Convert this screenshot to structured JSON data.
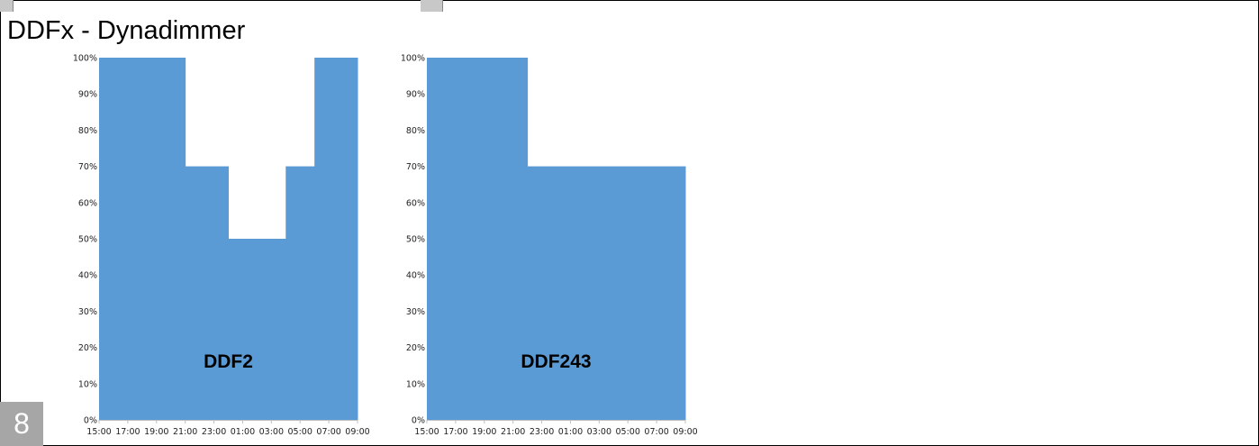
{
  "slide": {
    "title": "DDFx - Dynadimmer",
    "page_number": "8"
  },
  "colors": {
    "area_fill": "#5b9bd5",
    "badge": "#a6a6a6"
  },
  "chart_data": [
    {
      "type": "area",
      "label": "DDF2",
      "x": [
        "15:00",
        "17:00",
        "19:00",
        "21:00",
        "23:00",
        "01:00",
        "03:00",
        "05:00",
        "07:00",
        "09:00"
      ],
      "y_ticks": [
        "0%",
        "10%",
        "20%",
        "30%",
        "40%",
        "50%",
        "60%",
        "70%",
        "80%",
        "90%",
        "100%"
      ],
      "ylim": [
        0,
        100
      ],
      "steps": [
        {
          "from": "15:00",
          "to": "21:00",
          "value": 100
        },
        {
          "from": "21:00",
          "to": "00:00",
          "value": 70
        },
        {
          "from": "00:00",
          "to": "04:00",
          "value": 50
        },
        {
          "from": "04:00",
          "to": "06:00",
          "value": 70
        },
        {
          "from": "06:00",
          "to": "09:00",
          "value": 100
        }
      ]
    },
    {
      "type": "area",
      "label": "DDF243",
      "x": [
        "15:00",
        "17:00",
        "19:00",
        "21:00",
        "23:00",
        "01:00",
        "03:00",
        "05:00",
        "07:00",
        "09:00"
      ],
      "y_ticks": [
        "0%",
        "10%",
        "20%",
        "30%",
        "40%",
        "50%",
        "60%",
        "70%",
        "80%",
        "90%",
        "100%"
      ],
      "ylim": [
        0,
        100
      ],
      "steps": [
        {
          "from": "15:00",
          "to": "22:00",
          "value": 100
        },
        {
          "from": "22:00",
          "to": "09:00",
          "value": 70
        }
      ]
    }
  ]
}
